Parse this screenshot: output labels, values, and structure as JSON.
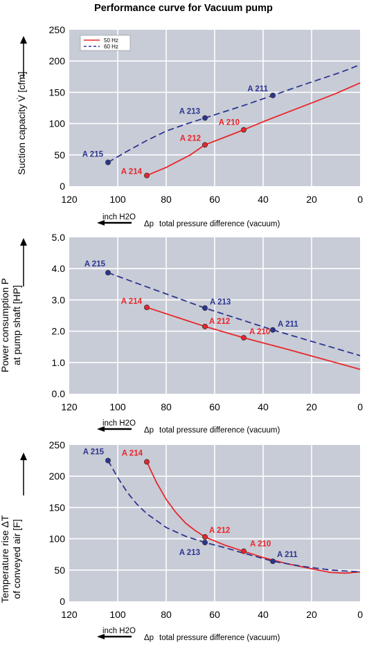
{
  "title": "Performance curve for Vacuum pump",
  "colors": {
    "s50": "#e8262b",
    "s60": "#2b3590",
    "plot_bg": "#c8ccd6",
    "grid": "#ffffff"
  },
  "chart_data": [
    {
      "type": "line",
      "ylabel": [
        "Suction capacity V̇ [cfm]"
      ],
      "xlabel": "total pressure difference (vacuum)",
      "delta_label": "Δp",
      "unit_label": "inch H2O",
      "xlim": [
        120,
        0
      ],
      "ylim": [
        0,
        250
      ],
      "xticks": [
        "120",
        "100",
        "80",
        "60",
        "40",
        "20",
        "0"
      ],
      "yticks": [
        "0",
        "50",
        "100",
        "150",
        "200",
        "250"
      ],
      "legend": {
        "position": "top-left",
        "entries": [
          "50 Hz",
          "60 Hz"
        ]
      },
      "series": [
        {
          "name": "50 Hz",
          "style": "solid",
          "curve": [
            [
              88,
              17
            ],
            [
              80,
              30
            ],
            [
              70,
              50
            ],
            [
              64,
              66
            ],
            [
              56,
              78
            ],
            [
              48,
              90
            ],
            [
              40,
              103
            ],
            [
              30,
              118
            ],
            [
              20,
              133
            ],
            [
              10,
              148
            ],
            [
              0,
              165
            ]
          ],
          "points": [
            {
              "label": "A 214",
              "x": 88,
              "y": 17
            },
            {
              "label": "A 212",
              "x": 64,
              "y": 66
            },
            {
              "label": "A 210",
              "x": 48,
              "y": 90
            }
          ]
        },
        {
          "name": "60 Hz",
          "style": "dashed",
          "curve": [
            [
              104,
              38
            ],
            [
              96,
              56
            ],
            [
              88,
              73
            ],
            [
              80,
              88
            ],
            [
              72,
              99
            ],
            [
              64,
              109
            ],
            [
              56,
              119
            ],
            [
              48,
              129
            ],
            [
              36,
              145
            ],
            [
              28,
              156
            ],
            [
              18,
              169
            ],
            [
              8,
              182
            ],
            [
              0,
              194
            ]
          ],
          "points": [
            {
              "label": "A 215",
              "x": 104,
              "y": 38
            },
            {
              "label": "A 213",
              "x": 64,
              "y": 109
            },
            {
              "label": "A 211",
              "x": 36,
              "y": 145
            }
          ]
        }
      ]
    },
    {
      "type": "line",
      "ylabel": [
        "Power consumption P",
        "at pump shaft [HP]"
      ],
      "xlabel": "total pressure difference (vacuum)",
      "delta_label": "Δp",
      "unit_label": "inch H2O",
      "xlim": [
        120,
        0
      ],
      "ylim": [
        0,
        5
      ],
      "xticks": [
        "120",
        "100",
        "80",
        "60",
        "40",
        "20",
        "0"
      ],
      "yticks": [
        "0.0",
        "1.0",
        "2.0",
        "3.0",
        "4.0",
        "5.0"
      ],
      "series": [
        {
          "name": "50 Hz",
          "style": "solid",
          "curve": [
            [
              88,
              2.76
            ],
            [
              64,
              2.15
            ],
            [
              48,
              1.79
            ],
            [
              30,
              1.42
            ],
            [
              0,
              0.78
            ]
          ],
          "points": [
            {
              "label": "A 214",
              "x": 88,
              "y": 2.76
            },
            {
              "label": "A 212",
              "x": 64,
              "y": 2.15
            },
            {
              "label": "A 210",
              "x": 48,
              "y": 1.79
            }
          ]
        },
        {
          "name": "60 Hz",
          "style": "dashed",
          "curve": [
            [
              104,
              3.87
            ],
            [
              64,
              2.74
            ],
            [
              36,
              2.04
            ],
            [
              0,
              1.22
            ]
          ],
          "points": [
            {
              "label": "A 215",
              "x": 104,
              "y": 3.87
            },
            {
              "label": "A 213",
              "x": 64,
              "y": 2.74
            },
            {
              "label": "A 211",
              "x": 36,
              "y": 2.04
            }
          ]
        }
      ]
    },
    {
      "type": "line",
      "ylabel": [
        "Temperature rise ΔT",
        "of conveyed air [F]"
      ],
      "xlabel": "total pressure difference (vacuum)",
      "delta_label": "Δp",
      "unit_label": "inch H2O",
      "xlim": [
        120,
        0
      ],
      "ylim": [
        0,
        250
      ],
      "xticks": [
        "120",
        "100",
        "80",
        "60",
        "40",
        "20",
        "0"
      ],
      "yticks": [
        "0",
        "50",
        "100",
        "150",
        "200",
        "250"
      ],
      "series": [
        {
          "name": "50 Hz",
          "style": "solid",
          "curve": [
            [
              88,
              223
            ],
            [
              84,
              190
            ],
            [
              80,
              163
            ],
            [
              76,
              142
            ],
            [
              72,
              125
            ],
            [
              68,
              113
            ],
            [
              64,
              103
            ],
            [
              56,
              90
            ],
            [
              48,
              80
            ],
            [
              40,
              70
            ],
            [
              30,
              60
            ],
            [
              20,
              52
            ],
            [
              12,
              46
            ],
            [
              6,
              45
            ],
            [
              0,
              47
            ]
          ],
          "points": [
            {
              "label": "A 214",
              "x": 88,
              "y": 223
            },
            {
              "label": "A 212",
              "x": 64,
              "y": 103
            },
            {
              "label": "A 210",
              "x": 48,
              "y": 80
            }
          ]
        },
        {
          "name": "60 Hz",
          "style": "dashed",
          "curve": [
            [
              104,
              225
            ],
            [
              100,
              198
            ],
            [
              96,
              174
            ],
            [
              92,
              155
            ],
            [
              88,
              140
            ],
            [
              80,
              118
            ],
            [
              72,
              104
            ],
            [
              64,
              94
            ],
            [
              56,
              86
            ],
            [
              48,
              77
            ],
            [
              36,
              64
            ],
            [
              24,
              56
            ],
            [
              12,
              50
            ],
            [
              0,
              47
            ]
          ],
          "points": [
            {
              "label": "A 215",
              "x": 104,
              "y": 225
            },
            {
              "label": "A 213",
              "x": 64,
              "y": 94
            },
            {
              "label": "A 211",
              "x": 36,
              "y": 64
            }
          ]
        }
      ]
    }
  ]
}
